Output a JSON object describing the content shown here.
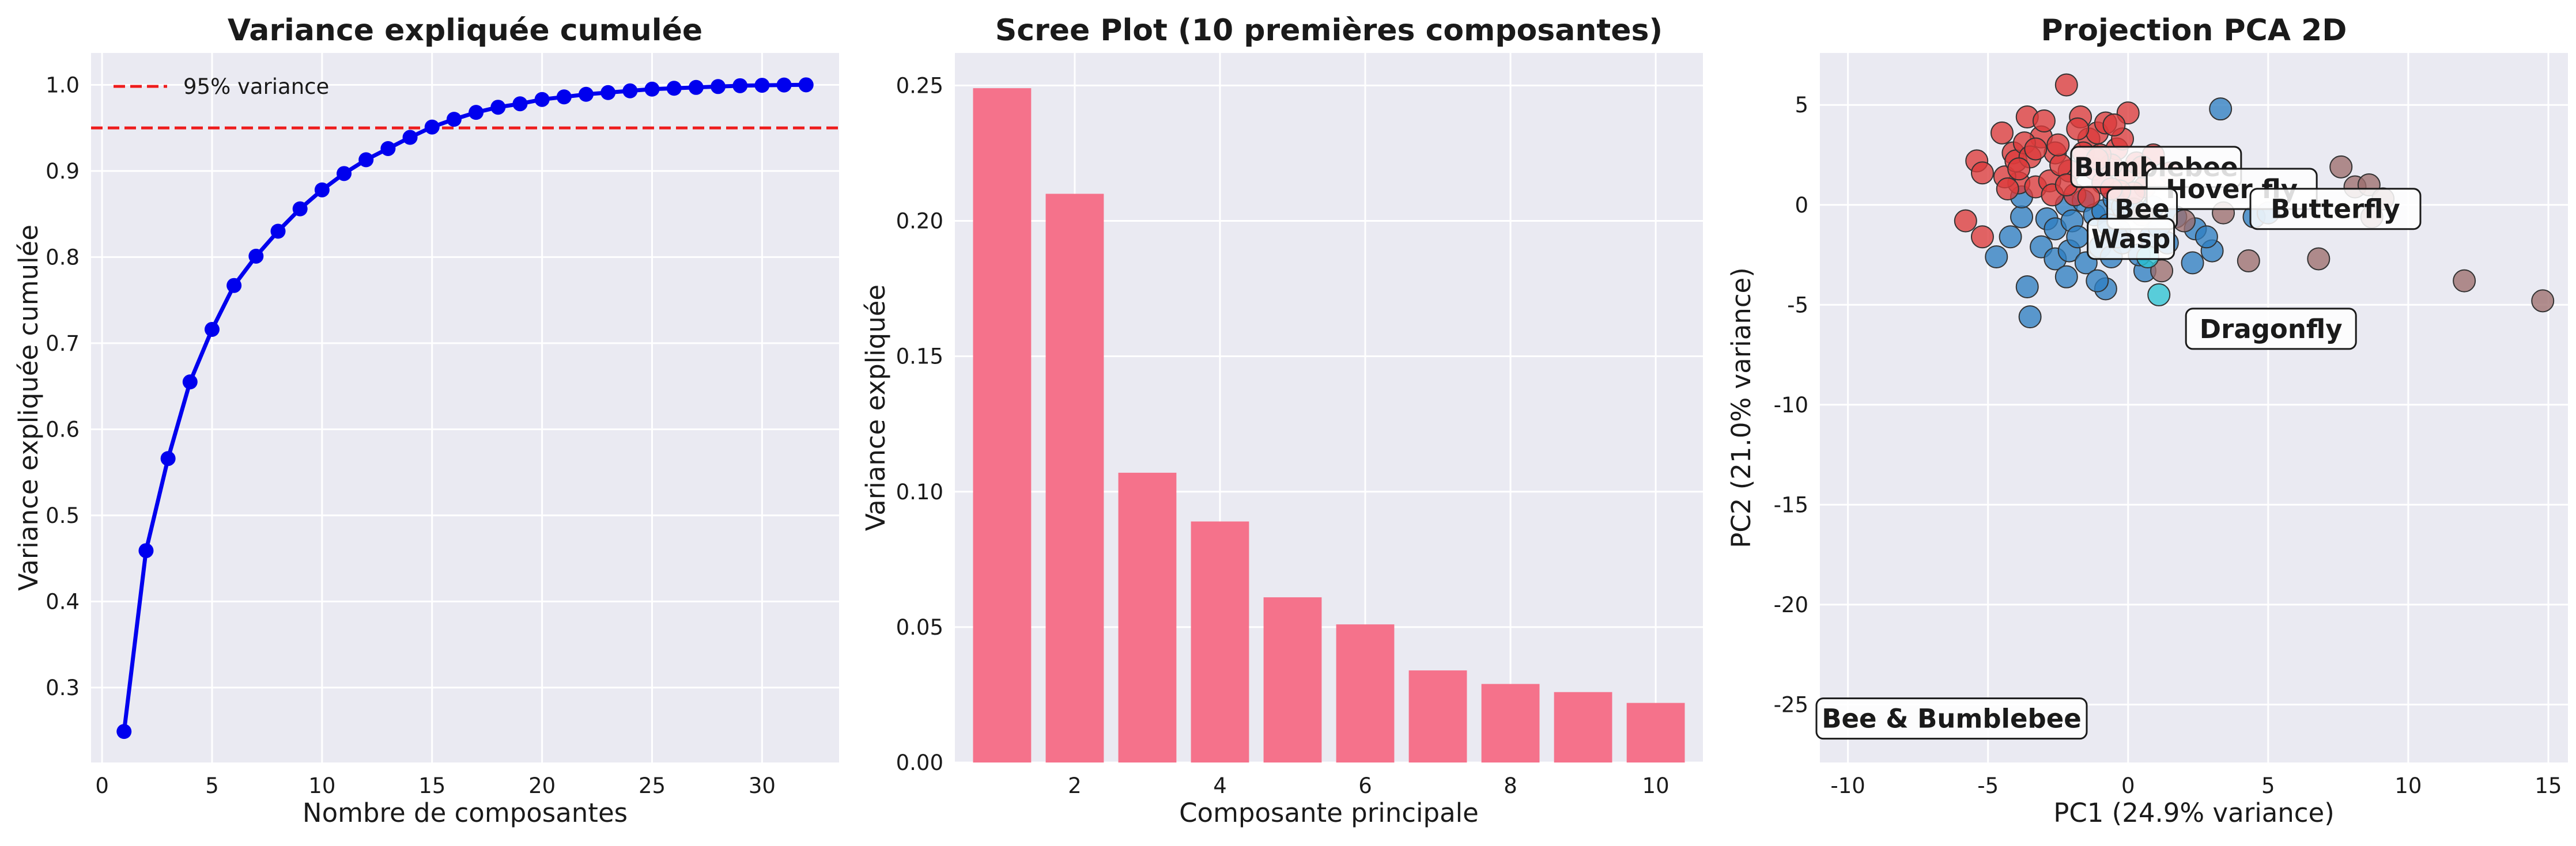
{
  "chart_data": [
    {
      "type": "line",
      "title": "Variance expliquée cumulée",
      "xlabel": "Nombre de composantes",
      "ylabel": "Variance expliquée cumulée",
      "xlim": [
        -0.5,
        33.5
      ],
      "ylim": [
        0.213,
        1.037
      ],
      "xticks": [
        0,
        5,
        10,
        15,
        20,
        25,
        30
      ],
      "yticks": [
        0.3,
        0.4,
        0.5,
        0.6,
        0.7,
        0.8,
        0.9,
        1.0
      ],
      "ytick_labels": [
        "0.3",
        "0.4",
        "0.5",
        "0.6",
        "0.7",
        "0.8",
        "0.9",
        "1.0"
      ],
      "grid": true,
      "legend": {
        "placement": "upper-left",
        "entries": [
          "95% variance"
        ]
      },
      "threshold": {
        "value": 0.95,
        "label": "95% variance",
        "color": "#ee1c1c"
      },
      "series_color": "#0000ee",
      "x": [
        1,
        2,
        3,
        4,
        5,
        6,
        7,
        8,
        9,
        10,
        11,
        12,
        13,
        14,
        15,
        16,
        17,
        18,
        19,
        20,
        21,
        22,
        23,
        24,
        25,
        26,
        27,
        28,
        29,
        30,
        31,
        32
      ],
      "y": [
        0.249,
        0.459,
        0.566,
        0.655,
        0.716,
        0.767,
        0.801,
        0.83,
        0.856,
        0.878,
        0.897,
        0.913,
        0.926,
        0.939,
        0.951,
        0.96,
        0.968,
        0.974,
        0.978,
        0.983,
        0.986,
        0.989,
        0.991,
        0.993,
        0.995,
        0.996,
        0.997,
        0.998,
        0.999,
        0.9995,
        0.9998,
        1.0
      ]
    },
    {
      "type": "bar",
      "title": "Scree Plot (10 premières composantes)",
      "xlabel": "Composante principale",
      "ylabel": "Variance expliquée",
      "xlim": [
        0.35,
        10.65
      ],
      "ylim": [
        0,
        0.262
      ],
      "xticks": [
        2,
        4,
        6,
        8,
        10
      ],
      "yticks": [
        0,
        0.05,
        0.1,
        0.15,
        0.2,
        0.25
      ],
      "ytick_labels": [
        "0.00",
        "0.05",
        "0.10",
        "0.15",
        "0.20",
        "0.25"
      ],
      "grid": true,
      "bar_color": "#f5728b",
      "categories": [
        1,
        2,
        3,
        4,
        5,
        6,
        7,
        8,
        9,
        10
      ],
      "values": [
        0.249,
        0.21,
        0.107,
        0.089,
        0.061,
        0.051,
        0.034,
        0.029,
        0.026,
        0.022
      ]
    },
    {
      "type": "scatter",
      "title": "Projection PCA 2D",
      "xlabel": "PC1 (24.9% variance)",
      "ylabel": "PC2 (21.0% variance)",
      "xlim": [
        -11.0,
        15.7
      ],
      "ylim": [
        -27.9,
        7.6
      ],
      "xticks": [
        -10,
        -5,
        0,
        5,
        10,
        15
      ],
      "yticks": [
        -25,
        -20,
        -15,
        -10,
        -5,
        0,
        5
      ],
      "grid": true,
      "series": [
        {
          "color": "#2f7fc1",
          "points": [
            [
              3.3,
              4.8
            ],
            [
              -2.2,
              0.0
            ],
            [
              -1.6,
              0.2
            ],
            [
              -1.2,
              -0.5
            ],
            [
              -0.9,
              -0.3
            ],
            [
              -0.5,
              0.3
            ],
            [
              -0.2,
              -0.1
            ],
            [
              0.2,
              -0.2
            ],
            [
              -2.9,
              -0.7
            ],
            [
              -4.2,
              -1.6
            ],
            [
              -3.1,
              -2.1
            ],
            [
              -2.6,
              -2.7
            ],
            [
              -2.1,
              -2.3
            ],
            [
              -1.5,
              -2.9
            ],
            [
              -1.0,
              -2.1
            ],
            [
              -0.6,
              -2.6
            ],
            [
              -0.3,
              -1.3
            ],
            [
              0.8,
              -1.6
            ],
            [
              1.7,
              -0.6
            ],
            [
              2.3,
              -2.9
            ],
            [
              -3.6,
              -4.1
            ],
            [
              -3.5,
              -5.6
            ],
            [
              -2.2,
              -3.6
            ],
            [
              -0.8,
              -4.2
            ],
            [
              -1.1,
              -3.8
            ],
            [
              -4.7,
              -2.6
            ],
            [
              -3.8,
              -0.6
            ],
            [
              0.6,
              -3.3
            ],
            [
              1.4,
              -1.9
            ],
            [
              -0.2,
              -1.9
            ],
            [
              -2.6,
              -1.2
            ],
            [
              -2.0,
              -0.8
            ],
            [
              3.0,
              -2.3
            ],
            [
              2.4,
              -1.2
            ],
            [
              1.1,
              -1.1
            ],
            [
              0.4,
              -2.5
            ],
            [
              -1.8,
              -1.6
            ],
            [
              -0.7,
              -1.0
            ],
            [
              4.5,
              -0.6
            ],
            [
              5.0,
              -0.4
            ],
            [
              -0.4,
              -1.6
            ],
            [
              0.9,
              -0.1
            ],
            [
              2.8,
              -1.6
            ],
            [
              -3.8,
              0.4
            ]
          ]
        },
        {
          "color": "#dd3b3b",
          "points": [
            [
              -2.2,
              6.0
            ],
            [
              -5.4,
              2.2
            ],
            [
              -5.2,
              1.6
            ],
            [
              -4.5,
              3.6
            ],
            [
              -4.1,
              2.6
            ],
            [
              -3.9,
              1.1
            ],
            [
              -3.6,
              4.4
            ],
            [
              -3.1,
              3.4
            ],
            [
              -2.6,
              2.6
            ],
            [
              -2.1,
              1.7
            ],
            [
              -1.7,
              4.4
            ],
            [
              -1.4,
              3.3
            ],
            [
              -1.1,
              3.6
            ],
            [
              -0.8,
              4.1
            ],
            [
              -0.4,
              2.8
            ],
            [
              -0.1,
              1.6
            ],
            [
              0.3,
              2.1
            ],
            [
              0.6,
              0.9
            ],
            [
              1.0,
              1.3
            ],
            [
              -4.4,
              1.4
            ],
            [
              -4.0,
              2.2
            ],
            [
              -3.7,
              3.1
            ],
            [
              -3.3,
              0.9
            ],
            [
              -2.8,
              1.2
            ],
            [
              -2.4,
              2.0
            ],
            [
              -1.9,
              0.5
            ],
            [
              -1.6,
              2.6
            ],
            [
              -1.2,
              1.8
            ],
            [
              -0.9,
              1.1
            ],
            [
              -0.6,
              2.0
            ],
            [
              -0.2,
              3.3
            ],
            [
              0.2,
              0.6
            ],
            [
              -5.2,
              -1.6
            ],
            [
              -5.8,
              -0.8
            ],
            [
              -3.0,
              4.2
            ],
            [
              -2.5,
              3.0
            ],
            [
              -1.0,
              2.5
            ],
            [
              0.0,
              4.6
            ],
            [
              -0.5,
              4.0
            ],
            [
              -3.5,
              2.4
            ],
            [
              -4.3,
              0.8
            ],
            [
              -1.4,
              0.4
            ],
            [
              1.5,
              1.6
            ],
            [
              0.9,
              2.5
            ],
            [
              -0.3,
              0.7
            ],
            [
              -1.8,
              3.8
            ],
            [
              -2.7,
              0.5
            ],
            [
              -3.9,
              1.8
            ],
            [
              -0.6,
              0.8
            ],
            [
              0.5,
              1.9
            ],
            [
              -1.1,
              2.3
            ],
            [
              -2.2,
              1.0
            ],
            [
              -3.3,
              2.8
            ]
          ]
        },
        {
          "color": "#9c6e6e",
          "points": [
            [
              0.5,
              -0.5
            ],
            [
              1.2,
              -3.3
            ],
            [
              4.3,
              -2.8
            ],
            [
              6.8,
              -2.7
            ],
            [
              7.6,
              1.9
            ],
            [
              8.1,
              0.9
            ],
            [
              8.6,
              1.0
            ],
            [
              9.1,
              0.3
            ],
            [
              8.7,
              -0.6
            ],
            [
              12.0,
              -3.8
            ],
            [
              14.8,
              -4.8
            ],
            [
              2.0,
              -0.8
            ],
            [
              3.4,
              -0.4
            ]
          ]
        },
        {
          "color": "#2ec4d4",
          "points": [
            [
              1.1,
              -4.5
            ],
            [
              0.7,
              -2.6
            ]
          ]
        }
      ],
      "labels": [
        {
          "text": "Bumblebee",
          "x": 1.0,
          "y": 1.9
        },
        {
          "text": "Hover fly",
          "x": 3.7,
          "y": 0.8
        },
        {
          "text": "Bee",
          "x": 0.5,
          "y": -0.2
        },
        {
          "text": "Butterfly",
          "x": 7.4,
          "y": -0.2
        },
        {
          "text": "Wasp",
          "x": 0.1,
          "y": -1.7
        },
        {
          "text": "Dragonfly",
          "x": 5.1,
          "y": -6.2
        },
        {
          "text": "Bee & Bumblebee",
          "x": -6.3,
          "y": -25.7
        }
      ]
    }
  ]
}
